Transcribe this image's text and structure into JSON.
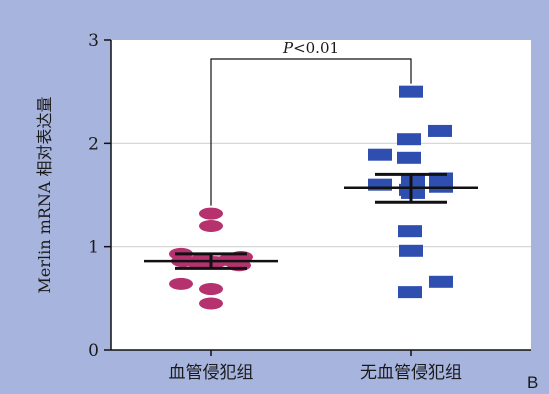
{
  "chart_data": {
    "type": "scatter",
    "ylabel": "Merlin mRNA 相对表达量",
    "xlabel": "",
    "ylim": [
      0,
      3
    ],
    "yticks": [
      0,
      1,
      2,
      3
    ],
    "categories": [
      "血管侵犯组",
      "无血管侵犯组"
    ],
    "panel_label": "B",
    "significance_label": "P<0.01",
    "grid": "horizontal",
    "colors": {
      "background": "#a7b4dd",
      "plot": "#ffffff",
      "group1": "#b5326e",
      "group2": "#2f4fb0",
      "stats": "#111111",
      "grid": "#d2d2d2"
    },
    "series": [
      {
        "category": "血管侵犯组",
        "marker": "ellipse",
        "values": [
          1.32,
          1.2,
          0.93,
          0.9,
          0.88,
          0.87,
          0.86,
          0.85,
          0.84,
          0.82,
          0.64,
          0.59,
          0.45
        ],
        "mean": 0.86,
        "error": [
          0.79,
          0.93
        ]
      },
      {
        "category": "无血管侵犯组",
        "marker": "square",
        "values": [
          2.5,
          2.12,
          2.04,
          1.89,
          1.86,
          1.66,
          1.64,
          1.6,
          1.58,
          1.55,
          1.52,
          1.15,
          0.96,
          0.66,
          0.56
        ],
        "mean": 1.57,
        "error": [
          1.43,
          1.7
        ]
      }
    ]
  }
}
